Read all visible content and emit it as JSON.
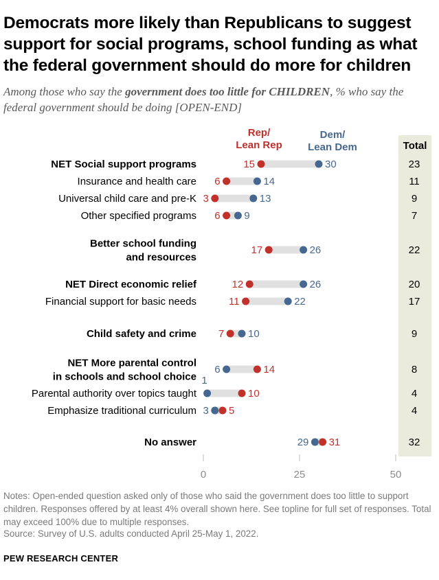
{
  "title": "Democrats more likely than Republicans to suggest support for social programs, school funding as what the federal government should do more for children",
  "subtitle": {
    "prefix": "Among those who say the ",
    "emphasis": "government does too little for CHILDREN",
    "suffix": ", % who say the federal government should be doing [OPEN-END]"
  },
  "notes": "Notes: Open-ended question asked only of those who said the government does too little to support children. Responses offered by at least 4% overall shown here. See topline for full set of responses. Total may exceed 100% due to multiple responses.",
  "source": "Source: Survey of U.S. adults conducted April 25-May 1, 2022.",
  "org": "PEW RESEARCH CENTER",
  "colors": {
    "rep": "#c0312c",
    "dem": "#46678f",
    "bar": "#e0e0e0",
    "total_bg": "#eaeadd",
    "axis_text": "#8a8a8a"
  },
  "chart_data": {
    "type": "dot-plot",
    "series": [
      {
        "key": "rep",
        "name": "Rep/\nLean Rep"
      },
      {
        "key": "dem",
        "name": "Dem/\nLean Dem"
      }
    ],
    "total_header": "Total",
    "xlim": [
      0,
      50
    ],
    "xticks": [
      0,
      25,
      50
    ],
    "rows": [
      {
        "label": "NET Social support programs",
        "bold": true,
        "rep": 15,
        "dem": 30,
        "total": 23
      },
      {
        "label": "Insurance and health care",
        "bold": false,
        "rep": 6,
        "dem": 14,
        "total": 11
      },
      {
        "label": "Universal child care and pre-K",
        "bold": false,
        "rep": 3,
        "dem": 13,
        "total": 9
      },
      {
        "label": "Other specified programs",
        "bold": false,
        "rep": 6,
        "dem": 9,
        "total": 7
      },
      {
        "label": "Better school funding\nand resources",
        "bold": true,
        "rep": 17,
        "dem": 26,
        "total": 22
      },
      {
        "label": "NET Direct economic relief",
        "bold": true,
        "rep": 12,
        "dem": 26,
        "total": 20
      },
      {
        "label": "Financial support for basic needs",
        "bold": false,
        "rep": 11,
        "dem": 22,
        "total": 17
      },
      {
        "label": "Child safety and crime",
        "bold": true,
        "rep": 7,
        "dem": 10,
        "total": 9
      },
      {
        "label": "NET More parental control\nin schools and school choice",
        "bold": true,
        "rep": 14,
        "dem": 6,
        "total": 8
      },
      {
        "label": "Parental authority over topics taught",
        "bold": false,
        "rep": 10,
        "dem": 1,
        "total": 4
      },
      {
        "label": "Emphasize traditional curriculum",
        "bold": false,
        "rep": 5,
        "dem": 3,
        "total": 4
      },
      {
        "label": "No answer",
        "bold": true,
        "rep": 31,
        "dem": 29,
        "total": 32
      }
    ]
  }
}
